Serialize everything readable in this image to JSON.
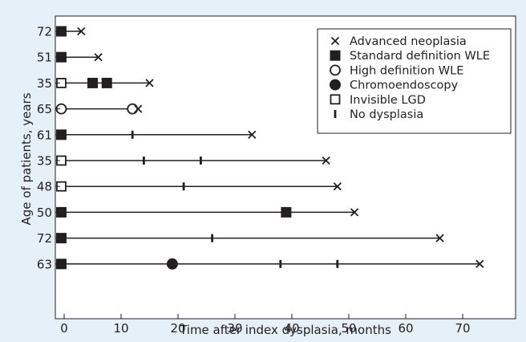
{
  "chart_data": {
    "type": "scatter",
    "xlabel": "Time after index dysplasia, months",
    "ylabel": "Age of patients, years",
    "xlim": [
      -1,
      80
    ],
    "xticks": [
      0,
      10,
      20,
      30,
      40,
      50,
      60,
      70
    ],
    "grid": false,
    "legend_position": "top-right",
    "colors": {
      "ink": "#231f20",
      "background": "#e6f0f8",
      "plot_area": "#ffffff"
    },
    "legend": [
      {
        "marker": "cross",
        "label": "Advanced neoplasia"
      },
      {
        "marker": "filled-square",
        "label": "Standard definition WLE"
      },
      {
        "marker": "open-circle",
        "label": "High definition WLE"
      },
      {
        "marker": "filled-circle",
        "label": "Chromoendoscopy"
      },
      {
        "marker": "open-square",
        "label": "Invisible LGD"
      },
      {
        "marker": "vbar",
        "label": "No dysplasia"
      }
    ],
    "patients": [
      {
        "age": "72",
        "end": 3,
        "events": [
          {
            "marker": "filled-square",
            "x": -0.5
          },
          {
            "marker": "cross",
            "x": 3
          }
        ]
      },
      {
        "age": "51",
        "end": 6,
        "events": [
          {
            "marker": "filled-square",
            "x": -0.5
          },
          {
            "marker": "cross",
            "x": 6
          }
        ]
      },
      {
        "age": "35",
        "end": 15,
        "events": [
          {
            "marker": "open-square",
            "x": -0.5
          },
          {
            "marker": "filled-square",
            "x": 5
          },
          {
            "marker": "filled-square",
            "x": 7.5
          },
          {
            "marker": "cross",
            "x": 15
          }
        ]
      },
      {
        "age": "65",
        "end": 13,
        "events": [
          {
            "marker": "open-circle",
            "x": -0.5
          },
          {
            "marker": "open-circle",
            "x": 12
          },
          {
            "marker": "cross",
            "x": 13
          }
        ]
      },
      {
        "age": "61",
        "end": 33,
        "events": [
          {
            "marker": "filled-square",
            "x": -0.5
          },
          {
            "marker": "vbar",
            "x": 12
          },
          {
            "marker": "cross",
            "x": 33
          }
        ]
      },
      {
        "age": "35",
        "end": 46,
        "events": [
          {
            "marker": "open-square",
            "x": -0.5
          },
          {
            "marker": "vbar",
            "x": 14
          },
          {
            "marker": "vbar",
            "x": 24
          },
          {
            "marker": "cross",
            "x": 46
          }
        ]
      },
      {
        "age": "48",
        "end": 48,
        "events": [
          {
            "marker": "open-square",
            "x": -0.5
          },
          {
            "marker": "vbar",
            "x": 21
          },
          {
            "marker": "cross",
            "x": 48
          }
        ]
      },
      {
        "age": "50",
        "end": 51,
        "events": [
          {
            "marker": "filled-square",
            "x": -0.5
          },
          {
            "marker": "filled-square",
            "x": 39
          },
          {
            "marker": "cross",
            "x": 51
          }
        ]
      },
      {
        "age": "72",
        "end": 66,
        "events": [
          {
            "marker": "filled-square",
            "x": -0.5
          },
          {
            "marker": "vbar",
            "x": 26
          },
          {
            "marker": "cross",
            "x": 66
          }
        ]
      },
      {
        "age": "63",
        "end": 73,
        "events": [
          {
            "marker": "filled-square",
            "x": -0.5
          },
          {
            "marker": "filled-circle",
            "x": 19
          },
          {
            "marker": "vbar",
            "x": 38
          },
          {
            "marker": "vbar",
            "x": 48
          },
          {
            "marker": "cross",
            "x": 73
          }
        ]
      }
    ]
  }
}
